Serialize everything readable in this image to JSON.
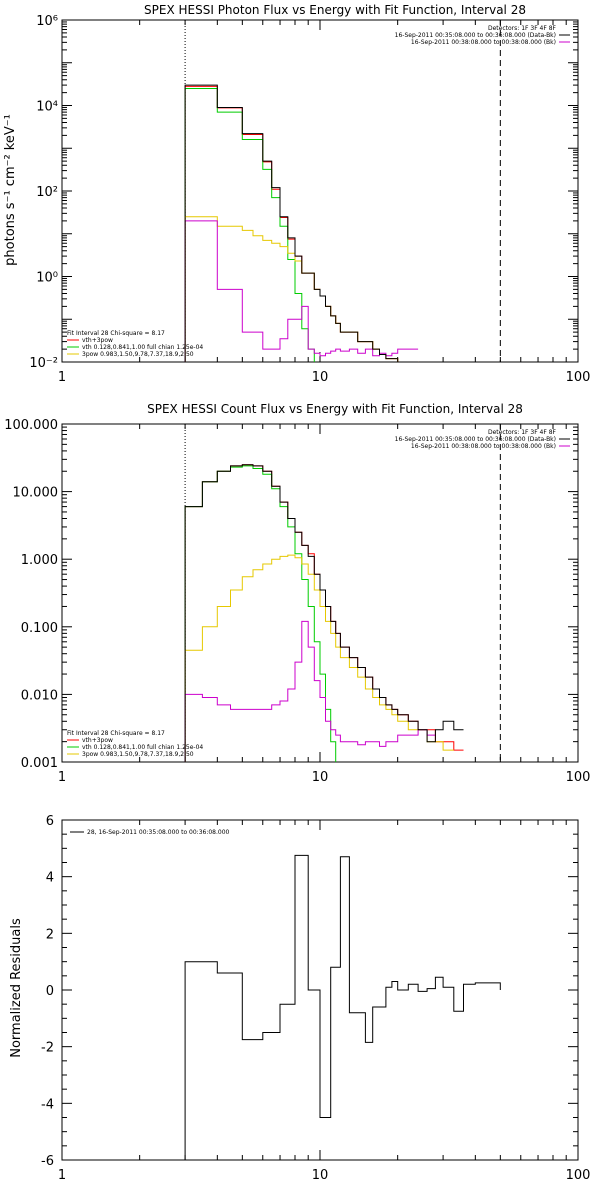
{
  "chart_data": [
    {
      "type": "line",
      "title": "SPEX HESSI Photon Flux vs Energy with Fit Function, Interval 28",
      "xlabel": "",
      "ylabel": "photons s⁻¹ cm⁻² keV⁻¹",
      "xscale": "log",
      "yscale": "log",
      "xlim": [
        1,
        100
      ],
      "ylim": [
        0.01,
        1000000
      ],
      "xticks": [
        "1",
        "10",
        "100"
      ],
      "yticks": [
        "10⁻²",
        "10⁰",
        "10²",
        "10⁴",
        "10⁶"
      ],
      "vlines": {
        "dotted": 3,
        "dashed": 50
      },
      "legend_top": {
        "lines": [
          "Detectors: 1F 3F 4F 8F",
          "16-Sep-2011 00:35:08.000 to 00:36:08.000 (Data-Bk)",
          "16-Sep-2011 00:38:08.000 to 00:38:08.000 (Bk)"
        ],
        "colors": [
          "#000000",
          "#cc00cc"
        ]
      },
      "legend_bottom": {
        "lines": [
          "Fit Interval 28   Chi-square = 8.17",
          "vth+3pow",
          "vth 0.128,0.841,1.00  full chian 1.25e-04",
          "3pow 0.983,1.50,9.78,7.37,18.9,2.50"
        ],
        "colors": [
          "#ff0000",
          "#00cc00",
          "#e6c800"
        ]
      },
      "x_edges": [
        3.0,
        3.5,
        4.0,
        4.5,
        5.0,
        5.5,
        6.0,
        6.5,
        7.0,
        7.5,
        8.0,
        8.5,
        9.0,
        9.5,
        10.0,
        10.5,
        11.0,
        11.5,
        12.0,
        13.0,
        14.0,
        15.0,
        16.0,
        17.0,
        18.0,
        19.0,
        20.0,
        22.0,
        24.0,
        26.0,
        28.0,
        30.0,
        33.0,
        36.0,
        40.0,
        45.0,
        50.0
      ],
      "series": [
        {
          "name": "Data-Bk",
          "color": "#000000",
          "values": [
            30000,
            30000,
            9000,
            9000,
            2200,
            2200,
            500,
            120,
            25,
            8,
            3,
            1.2,
            1.2,
            0.5,
            0.35,
            0.2,
            0.12,
            0.08,
            0.05,
            0.05,
            0.03,
            0.03,
            0.02,
            0.015,
            0.012,
            0.012,
            0.01,
            0.01
          ]
        },
        {
          "name": "vth+3pow",
          "color": "#ff0000",
          "values": [
            28000,
            28000,
            8800,
            8800,
            2100,
            2100,
            480,
            110,
            24,
            7.5,
            3,
            1.2,
            1.2,
            0.5,
            0.35,
            0.2,
            0.12,
            0.08,
            0.05,
            0.05,
            0.03,
            0.03,
            0.02,
            0.015,
            0.012,
            0.012,
            0.01,
            0.01
          ]
        },
        {
          "name": "vth",
          "color": "#00cc00",
          "values": [
            25000,
            25000,
            7000,
            7000,
            1600,
            1600,
            320,
            70,
            15,
            2.5,
            0.4,
            0.06,
            0.02,
            0.009,
            0.009,
            0.009,
            0.009,
            0.009,
            0.009,
            0.009,
            0.009,
            0.009,
            0.009,
            0.009,
            0.009,
            0.009,
            0.009,
            0.009
          ]
        },
        {
          "name": "3pow",
          "color": "#e6c800",
          "values": [
            25,
            25,
            15,
            15,
            12,
            9,
            7,
            6,
            5,
            3.5,
            2.3,
            1.2,
            1.2,
            0.5,
            0.35,
            0.2,
            0.12,
            0.08,
            0.05,
            0.05,
            0.03,
            0.03,
            0.02,
            0.015,
            0.012,
            0.012,
            0.01,
            0.01
          ]
        },
        {
          "name": "Bk",
          "color": "#cc00cc",
          "values": [
            20,
            20,
            0.5,
            0.5,
            0.05,
            0.05,
            0.02,
            0.02,
            0.035,
            0.1,
            0.1,
            0.2,
            0.02,
            0.016,
            0.014,
            0.016,
            0.018,
            0.02,
            0.018,
            0.02,
            0.016,
            0.02,
            0.014,
            0.016,
            0.014,
            0.016,
            0.02,
            0.02
          ]
        }
      ]
    },
    {
      "type": "line",
      "title": "SPEX HESSI Count Flux vs Energy with Fit Function, Interval 28",
      "xlabel": "",
      "ylabel": "",
      "xscale": "log",
      "yscale": "log",
      "xlim": [
        1,
        100
      ],
      "ylim": [
        0.001,
        100
      ],
      "xticks": [
        "1",
        "10",
        "100"
      ],
      "yticks": [
        "0.001",
        "0.010",
        "0.100",
        "1.000",
        "10.000",
        "100.000"
      ],
      "vlines": {
        "dotted": 3,
        "dashed": 50
      },
      "legend_top": {
        "lines": [
          "Detectors: 1F 3F 4F 8F",
          "16-Sep-2011 00:35:08.000 to 00:36:08.000 (Data-Bk)",
          "16-Sep-2011 00:38:08.000 to 00:38:08.000 (Bk)"
        ],
        "colors": [
          "#000000",
          "#cc00cc"
        ]
      },
      "legend_bottom": {
        "lines": [
          "Fit Interval 28   Chi-square = 8.17",
          "vth+3pow",
          "vth 0.128,0.841,1.00  full chian 1.25e-04",
          "3pow 0.983,1.50,9.78,7.37,18.9,2.50"
        ],
        "colors": [
          "#ff0000",
          "#00cc00",
          "#e6c800"
        ]
      },
      "x_edges": [
        3.0,
        3.5,
        4.0,
        4.5,
        5.0,
        5.5,
        6.0,
        6.5,
        7.0,
        7.5,
        8.0,
        8.5,
        9.0,
        9.5,
        10.0,
        10.5,
        11.0,
        11.5,
        12.0,
        13.0,
        14.0,
        15.0,
        16.0,
        17.0,
        18.0,
        19.0,
        20.0,
        22.0,
        24.0,
        26.0,
        28.0,
        30.0,
        33.0,
        36.0,
        40.0,
        45.0,
        50.0,
        55.0,
        60.0,
        66.0
      ],
      "series": [
        {
          "name": "Data-Bk",
          "color": "#000000",
          "values": [
            6,
            14,
            20,
            24,
            25,
            24,
            20,
            12,
            7,
            4,
            2.5,
            1.6,
            1.1,
            0.6,
            0.35,
            0.2,
            0.12,
            0.08,
            0.05,
            0.035,
            0.025,
            0.018,
            0.012,
            0.009,
            0.007,
            0.006,
            0.005,
            0.004,
            0.003,
            0.002,
            0.003,
            0.004,
            0.003
          ]
        },
        {
          "name": "vth+3pow",
          "color": "#ff0000",
          "values": [
            6,
            14,
            20,
            24,
            25,
            24,
            20,
            12,
            7,
            4,
            2.5,
            1.6,
            1.2,
            0.6,
            0.35,
            0.2,
            0.12,
            0.08,
            0.05,
            0.035,
            0.025,
            0.018,
            0.012,
            0.009,
            0.007,
            0.006,
            0.005,
            0.004,
            0.003,
            0.003,
            0.002,
            0.002,
            0.0015
          ]
        },
        {
          "name": "vth",
          "color": "#00cc00",
          "values": [
            6,
            14,
            20,
            23,
            24,
            22,
            18,
            11,
            6,
            3,
            1.2,
            0.5,
            0.2,
            0.06,
            0.02,
            0.006,
            0.002,
            0.0009
          ]
        },
        {
          "name": "3pow",
          "color": "#e6c800",
          "values": [
            0.045,
            0.1,
            0.2,
            0.35,
            0.55,
            0.7,
            0.85,
            1.0,
            1.1,
            1.15,
            1.05,
            0.85,
            0.6,
            0.35,
            0.2,
            0.12,
            0.08,
            0.05,
            0.035,
            0.025,
            0.018,
            0.012,
            0.009,
            0.007,
            0.006,
            0.005,
            0.004,
            0.003,
            0.003,
            0.002,
            0.002,
            0.0015
          ]
        },
        {
          "name": "Bk",
          "color": "#cc00cc",
          "values": [
            0.01,
            0.009,
            0.007,
            0.006,
            0.006,
            0.006,
            0.006,
            0.007,
            0.008,
            0.012,
            0.03,
            0.12,
            0.05,
            0.016,
            0.009,
            0.004,
            0.003,
            0.0025,
            0.002,
            0.002,
            0.0018,
            0.002,
            0.002,
            0.0017,
            0.002,
            0.002,
            0.0025,
            0.0025,
            0.003,
            0.0025
          ]
        }
      ]
    },
    {
      "type": "line",
      "title": "",
      "xlabel": "",
      "ylabel": "Normalized Residuals",
      "xscale": "log",
      "yscale": "linear",
      "xlim": [
        1,
        100
      ],
      "ylim": [
        -6,
        6
      ],
      "xticks": [
        "1",
        "10",
        "100"
      ],
      "yticks": [
        "-6",
        "-4",
        "-2",
        "0",
        "2",
        "4",
        "6"
      ],
      "legend": "28, 16-Sep-2011 00:35:08.000 to 00:36:08.000",
      "x_edges": [
        3.0,
        3.5,
        4.0,
        4.5,
        5.0,
        5.5,
        6.0,
        6.5,
        7.0,
        7.5,
        8.0,
        8.5,
        9.0,
        9.5,
        10.0,
        10.5,
        11.0,
        11.5,
        12.0,
        13.0,
        14.0,
        15.0,
        16.0,
        17.0,
        18.0,
        19.0,
        20.0,
        22.0,
        24.0,
        26.0,
        28.0,
        30.0,
        33.0,
        36.0,
        40.0,
        45.0,
        50.0
      ],
      "series": [
        {
          "name": "28",
          "color": "#000000",
          "values": [
            1.0,
            1.0,
            0.6,
            0.6,
            -1.75,
            -1.75,
            -1.5,
            -1.5,
            -0.5,
            -0.5,
            4.75,
            4.75,
            0.0,
            0.0,
            -4.5,
            -4.5,
            0.8,
            0.8,
            4.7,
            -0.8,
            -0.8,
            -1.85,
            -0.6,
            -0.6,
            0.1,
            0.3,
            0.0,
            0.2,
            -0.05,
            0.05,
            0.45,
            0.1,
            -0.75,
            0.2,
            0.25,
            0.25
          ]
        }
      ]
    }
  ]
}
